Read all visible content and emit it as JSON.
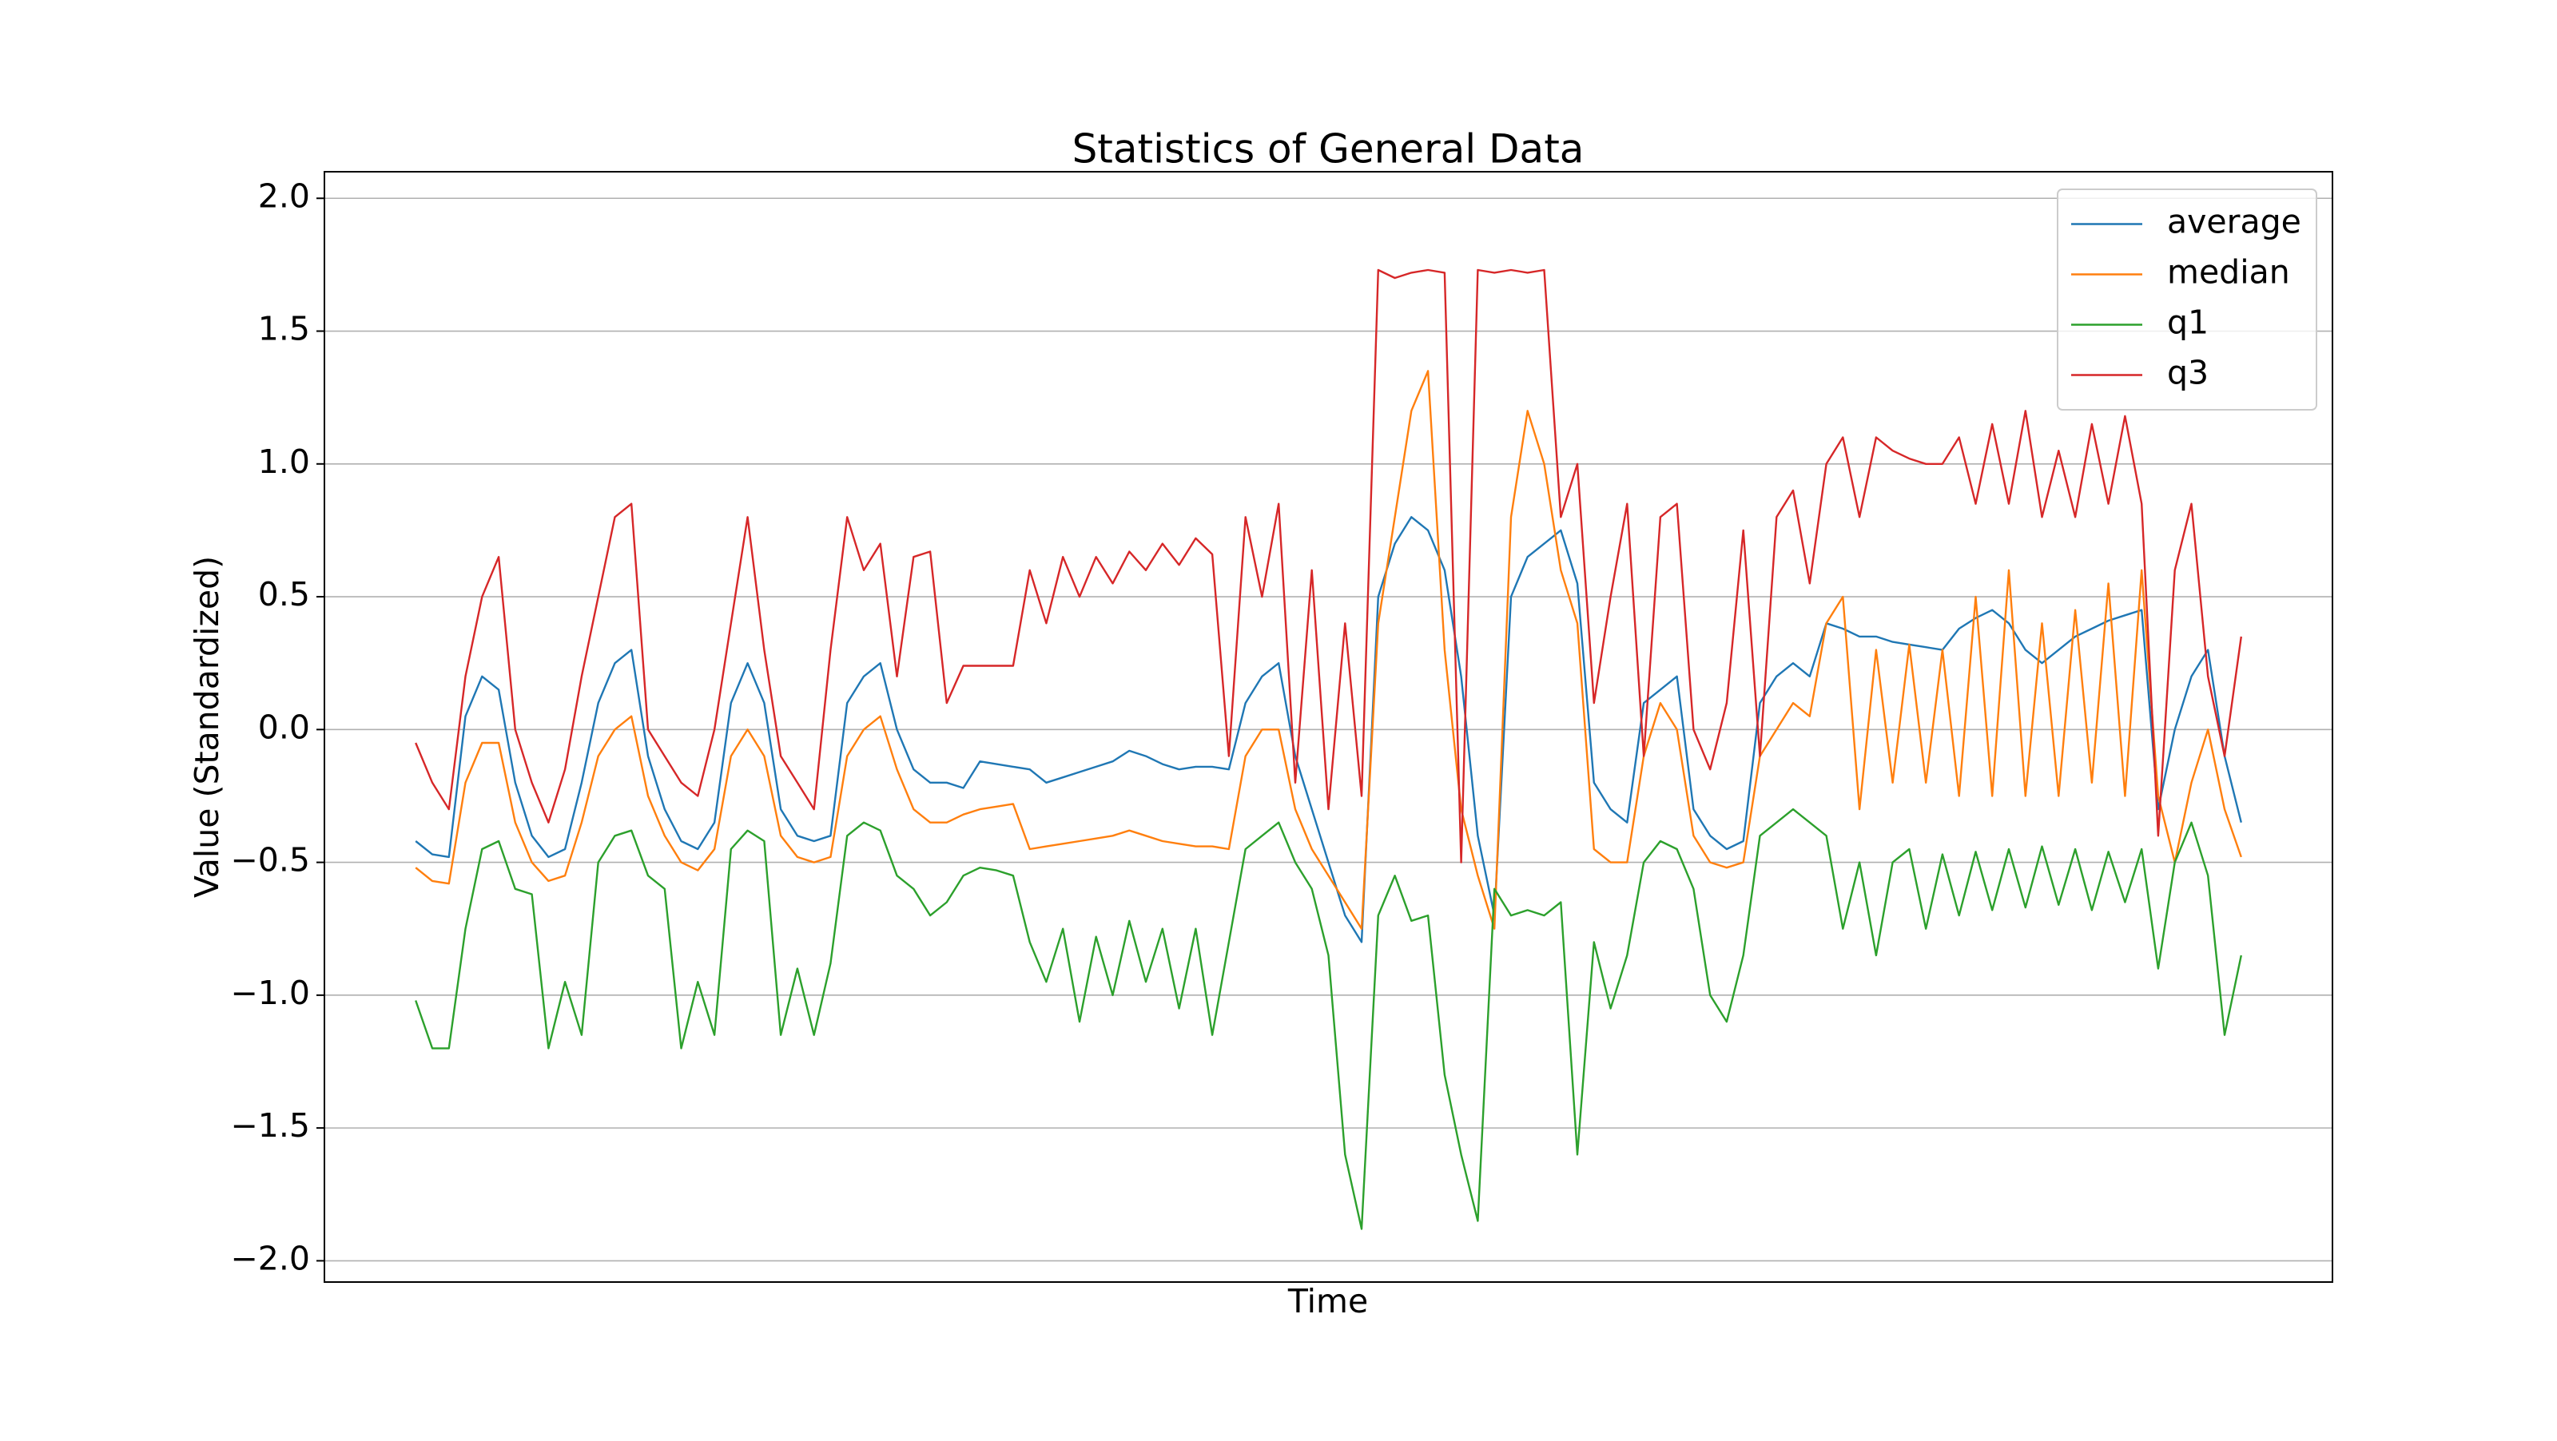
{
  "chart_data": {
    "type": "line",
    "title": "Statistics of General Data",
    "xlabel": "Time",
    "ylabel": "Value (Standardized)",
    "categories": [
      null,
      null,
      null,
      null,
      null,
      null,
      null,
      null,
      null,
      null,
      null,
      null,
      null,
      null,
      null,
      null,
      null,
      null,
      null,
      null,
      null,
      null,
      null,
      null,
      null,
      null,
      null,
      null,
      null,
      null,
      null,
      null,
      null,
      null,
      null,
      null,
      null,
      null,
      null,
      null,
      null,
      null,
      null,
      null,
      null,
      null,
      null,
      null,
      null,
      null,
      null,
      null,
      null,
      null,
      null,
      null,
      null,
      null,
      null,
      null,
      null,
      null,
      null,
      null,
      null,
      null,
      null,
      null,
      null,
      null,
      null,
      null,
      null,
      null,
      null,
      null,
      null,
      null,
      null,
      null,
      null,
      null,
      null,
      null,
      null,
      null,
      null,
      null,
      null,
      null,
      null,
      null,
      null,
      null,
      null,
      null,
      null,
      null,
      null,
      null,
      null,
      null,
      null,
      null,
      null,
      null,
      null,
      null,
      null,
      null,
      null
    ],
    "series": [
      {
        "name": "average",
        "color": "#1f77b4",
        "values": [
          -0.42,
          -0.47,
          -0.48,
          0.05,
          0.2,
          0.15,
          -0.2,
          -0.4,
          -0.48,
          -0.45,
          -0.2,
          0.1,
          0.25,
          0.3,
          -0.1,
          -0.3,
          -0.42,
          -0.45,
          -0.35,
          0.1,
          0.25,
          0.1,
          -0.3,
          -0.4,
          -0.42,
          -0.4,
          0.1,
          0.2,
          0.25,
          0.0,
          -0.15,
          -0.2,
          -0.2,
          -0.22,
          -0.12,
          -0.13,
          -0.14,
          -0.15,
          -0.2,
          -0.18,
          -0.16,
          -0.14,
          -0.12,
          -0.08,
          -0.1,
          -0.13,
          -0.15,
          -0.14,
          -0.14,
          -0.15,
          0.1,
          0.2,
          0.25,
          -0.1,
          -0.3,
          -0.5,
          -0.7,
          -0.8,
          0.5,
          0.7,
          0.8,
          0.75,
          0.6,
          0.2,
          -0.4,
          -0.7,
          0.5,
          0.65,
          0.7,
          0.75,
          0.55,
          -0.2,
          -0.3,
          -0.35,
          0.1,
          0.15,
          0.2,
          -0.3,
          -0.4,
          -0.45,
          -0.42,
          0.1,
          0.2,
          0.25,
          0.2,
          0.4,
          0.38,
          0.35,
          0.35,
          0.33,
          0.32,
          0.31,
          0.3,
          0.38,
          0.42,
          0.45,
          0.4,
          0.3,
          0.25,
          0.3,
          0.35,
          0.38,
          0.41,
          0.43,
          0.45,
          -0.3,
          0.0,
          0.2,
          0.3,
          -0.1,
          -0.35
        ]
      },
      {
        "name": "median",
        "color": "#ff7f0e",
        "values": [
          -0.52,
          -0.57,
          -0.58,
          -0.2,
          -0.05,
          -0.05,
          -0.35,
          -0.5,
          -0.57,
          -0.55,
          -0.35,
          -0.1,
          0.0,
          0.05,
          -0.25,
          -0.4,
          -0.5,
          -0.53,
          -0.45,
          -0.1,
          0.0,
          -0.1,
          -0.4,
          -0.48,
          -0.5,
          -0.48,
          -0.1,
          0.0,
          0.05,
          -0.15,
          -0.3,
          -0.35,
          -0.35,
          -0.32,
          -0.3,
          -0.29,
          -0.28,
          -0.45,
          -0.44,
          -0.43,
          -0.42,
          -0.41,
          -0.4,
          -0.38,
          -0.4,
          -0.42,
          -0.43,
          -0.44,
          -0.44,
          -0.45,
          -0.1,
          0.0,
          0.0,
          -0.3,
          -0.45,
          -0.55,
          -0.65,
          -0.75,
          0.4,
          0.8,
          1.2,
          1.35,
          0.3,
          -0.3,
          -0.55,
          -0.75,
          0.8,
          1.2,
          1.0,
          0.6,
          0.4,
          -0.45,
          -0.5,
          -0.5,
          -0.1,
          0.1,
          0.0,
          -0.4,
          -0.5,
          -0.52,
          -0.5,
          -0.1,
          0.0,
          0.1,
          0.05,
          0.4,
          0.5,
          -0.3,
          0.3,
          -0.2,
          0.32,
          -0.2,
          0.3,
          -0.25,
          0.5,
          -0.25,
          0.6,
          -0.25,
          0.4,
          -0.25,
          0.45,
          -0.2,
          0.55,
          -0.25,
          0.6,
          -0.25,
          -0.5,
          -0.2,
          0.0,
          -0.3,
          -0.48
        ]
      },
      {
        "name": "q1",
        "color": "#2ca02c",
        "values": [
          -1.02,
          -1.2,
          -1.2,
          -0.75,
          -0.45,
          -0.42,
          -0.6,
          -0.62,
          -1.2,
          -0.95,
          -1.15,
          -0.5,
          -0.4,
          -0.38,
          -0.55,
          -0.6,
          -1.2,
          -0.95,
          -1.15,
          -0.45,
          -0.38,
          -0.42,
          -1.15,
          -0.9,
          -1.15,
          -0.88,
          -0.4,
          -0.35,
          -0.38,
          -0.55,
          -0.6,
          -0.7,
          -0.65,
          -0.55,
          -0.52,
          -0.53,
          -0.55,
          -0.8,
          -0.95,
          -0.75,
          -1.1,
          -0.78,
          -1.0,
          -0.72,
          -0.95,
          -0.75,
          -1.05,
          -0.75,
          -1.15,
          -0.8,
          -0.45,
          -0.4,
          -0.35,
          -0.5,
          -0.6,
          -0.85,
          -1.6,
          -1.88,
          -0.7,
          -0.55,
          -0.72,
          -0.7,
          -1.3,
          -1.6,
          -1.85,
          -0.6,
          -0.7,
          -0.68,
          -0.7,
          -0.65,
          -1.6,
          -0.8,
          -1.05,
          -0.85,
          -0.5,
          -0.42,
          -0.45,
          -0.6,
          -1.0,
          -1.1,
          -0.85,
          -0.4,
          -0.35,
          -0.3,
          -0.35,
          -0.4,
          -0.75,
          -0.5,
          -0.85,
          -0.5,
          -0.45,
          -0.75,
          -0.47,
          -0.7,
          -0.46,
          -0.68,
          -0.45,
          -0.67,
          -0.44,
          -0.66,
          -0.45,
          -0.68,
          -0.46,
          -0.65,
          -0.45,
          -0.9,
          -0.5,
          -0.35,
          -0.55,
          -1.15,
          -0.85
        ]
      },
      {
        "name": "q3",
        "color": "#d62728",
        "values": [
          -0.05,
          -0.2,
          -0.3,
          0.2,
          0.5,
          0.65,
          0.0,
          -0.2,
          -0.35,
          -0.15,
          0.2,
          0.5,
          0.8,
          0.85,
          0.0,
          -0.1,
          -0.2,
          -0.25,
          0.0,
          0.4,
          0.8,
          0.3,
          -0.1,
          -0.2,
          -0.3,
          0.3,
          0.8,
          0.6,
          0.7,
          0.2,
          0.65,
          0.67,
          0.1,
          0.24,
          0.24,
          0.24,
          0.24,
          0.6,
          0.4,
          0.65,
          0.5,
          0.65,
          0.55,
          0.67,
          0.6,
          0.7,
          0.62,
          0.72,
          0.66,
          -0.1,
          0.8,
          0.5,
          0.85,
          -0.2,
          0.6,
          -0.3,
          0.4,
          -0.25,
          1.73,
          1.7,
          1.72,
          1.73,
          1.72,
          -0.5,
          1.73,
          1.72,
          1.73,
          1.72,
          1.73,
          0.8,
          1.0,
          0.1,
          0.5,
          0.85,
          -0.1,
          0.8,
          0.85,
          0.0,
          -0.15,
          0.1,
          0.75,
          -0.1,
          0.8,
          0.9,
          0.55,
          1.0,
          1.1,
          0.8,
          1.1,
          1.05,
          1.02,
          1.0,
          1.0,
          1.1,
          0.85,
          1.15,
          0.85,
          1.2,
          0.8,
          1.05,
          0.8,
          1.15,
          0.85,
          1.18,
          0.85,
          -0.4,
          0.6,
          0.85,
          0.2,
          -0.1,
          0.35
        ]
      }
    ],
    "ylim": [
      -2.08,
      2.1
    ],
    "yticks": [
      {
        "value": -2,
        "label": "−2.0"
      },
      {
        "value": -1.5,
        "label": "−1.5"
      },
      {
        "value": -1,
        "label": "−1.0"
      },
      {
        "value": -0.5,
        "label": "−0.5"
      },
      {
        "value": 0,
        "label": "0.0"
      },
      {
        "value": 0.5,
        "label": "0.5"
      },
      {
        "value": 1,
        "label": "1.0"
      },
      {
        "value": 1.5,
        "label": "1.5"
      },
      {
        "value": 2,
        "label": "2.0"
      }
    ],
    "grid": true,
    "legend": "upper right"
  }
}
